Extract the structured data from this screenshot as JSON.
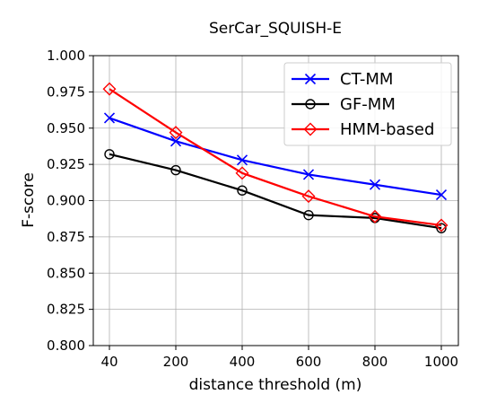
{
  "chart_data": {
    "type": "line",
    "title": "SerCar_SQUISH-E",
    "xlabel": "distance threshold (m)",
    "ylabel": "F-score",
    "categories": [
      "40",
      "200",
      "400",
      "600",
      "800",
      "1000"
    ],
    "ylim": [
      0.8,
      1.0
    ],
    "yticks": [
      "0.800",
      "0.825",
      "0.850",
      "0.875",
      "0.900",
      "0.925",
      "0.950",
      "0.975",
      "1.000"
    ],
    "grid": true,
    "legend_position": "top-right",
    "series": [
      {
        "name": "CT-MM",
        "color": "#0000ff",
        "marker": "x",
        "values": [
          0.957,
          0.941,
          0.928,
          0.918,
          0.911,
          0.904
        ]
      },
      {
        "name": "GF-MM",
        "color": "#000000",
        "marker": "circle",
        "values": [
          0.932,
          0.921,
          0.907,
          0.89,
          0.888,
          0.881
        ]
      },
      {
        "name": "HMM-based",
        "color": "#ff0000",
        "marker": "diamond",
        "values": [
          0.977,
          0.947,
          0.919,
          0.903,
          0.889,
          0.883
        ]
      }
    ]
  }
}
